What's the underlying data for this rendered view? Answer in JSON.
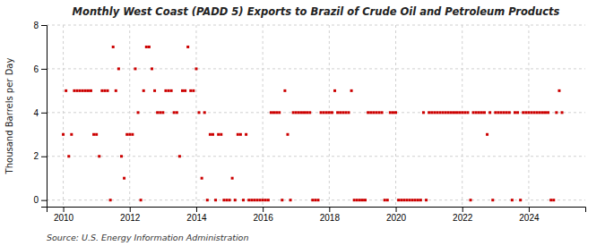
{
  "chart_data": {
    "type": "scatter",
    "title": "Monthly West Coast (PADD 5) Exports to Brazil of Crude Oil and Petroleum Products",
    "ylabel": "Thousand Barrels per Day",
    "source": "Source: U.S. Energy Information Administration",
    "color": "#cc0000",
    "marker": "square",
    "grid": true,
    "xlim": [
      2009.5,
      2025.7
    ],
    "xticks": [
      2010,
      2012,
      2014,
      2016,
      2018,
      2020,
      2022,
      2024
    ],
    "ylim": [
      -0.3,
      8
    ],
    "yticks": [
      0,
      2,
      4,
      6,
      8
    ],
    "x": [
      2010.0,
      2010.083,
      2010.167,
      2010.25,
      2010.333,
      2010.417,
      2010.5,
      2010.583,
      2010.667,
      2010.75,
      2010.833,
      2010.917,
      2011.0,
      2011.083,
      2011.167,
      2011.25,
      2011.333,
      2011.417,
      2011.5,
      2011.583,
      2011.667,
      2011.75,
      2011.833,
      2011.917,
      2012.0,
      2012.083,
      2012.167,
      2012.25,
      2012.333,
      2012.417,
      2012.5,
      2012.583,
      2012.667,
      2012.75,
      2012.833,
      2012.917,
      2013.0,
      2013.083,
      2013.167,
      2013.25,
      2013.333,
      2013.417,
      2013.5,
      2013.583,
      2013.667,
      2013.75,
      2013.833,
      2013.917,
      2014.0,
      2014.083,
      2014.167,
      2014.25,
      2014.333,
      2014.417,
      2014.5,
      2014.583,
      2014.667,
      2014.75,
      2014.833,
      2014.917,
      2015.0,
      2015.083,
      2015.167,
      2015.25,
      2015.333,
      2015.417,
      2015.5,
      2015.583,
      2015.667,
      2015.75,
      2015.833,
      2015.917,
      2016.0,
      2016.083,
      2016.167,
      2016.25,
      2016.333,
      2016.417,
      2016.5,
      2016.583,
      2016.667,
      2016.75,
      2016.833,
      2016.917,
      2017.0,
      2017.083,
      2017.167,
      2017.25,
      2017.333,
      2017.417,
      2017.5,
      2017.583,
      2017.667,
      2017.75,
      2017.833,
      2017.917,
      2018.0,
      2018.083,
      2018.167,
      2018.25,
      2018.333,
      2018.417,
      2018.5,
      2018.583,
      2018.667,
      2018.75,
      2018.833,
      2018.917,
      2019.0,
      2019.083,
      2019.167,
      2019.25,
      2019.333,
      2019.417,
      2019.5,
      2019.583,
      2019.667,
      2019.75,
      2019.833,
      2019.917,
      2020.0,
      2020.083,
      2020.167,
      2020.25,
      2020.333,
      2020.417,
      2020.5,
      2020.583,
      2020.667,
      2020.75,
      2020.833,
      2020.917,
      2021.0,
      2021.083,
      2021.167,
      2021.25,
      2021.333,
      2021.417,
      2021.5,
      2021.583,
      2021.667,
      2021.75,
      2021.833,
      2021.917,
      2022.0,
      2022.083,
      2022.167,
      2022.25,
      2022.333,
      2022.417,
      2022.5,
      2022.583,
      2022.667,
      2022.75,
      2022.833,
      2022.917,
      2023.0,
      2023.083,
      2023.167,
      2023.25,
      2023.333,
      2023.417,
      2023.5,
      2023.583,
      2023.667,
      2023.75,
      2023.833,
      2023.917,
      2024.0,
      2024.083,
      2024.167,
      2024.25,
      2024.333,
      2024.417,
      2024.5,
      2024.583,
      2024.667,
      2024.75,
      2024.833,
      2024.917,
      2025.0
    ],
    "values": [
      3,
      5,
      2,
      3,
      5,
      5,
      5,
      5,
      5,
      5,
      5,
      3,
      3,
      2,
      5,
      5,
      5,
      0,
      7,
      5,
      6,
      2,
      1,
      3,
      3,
      3,
      6,
      4,
      0,
      5,
      7,
      7,
      6,
      5,
      4,
      4,
      4,
      5,
      5,
      5,
      4,
      4,
      2,
      5,
      5,
      7,
      5,
      5,
      6,
      4,
      1,
      4,
      0,
      3,
      3,
      0,
      3,
      3,
      0,
      0,
      0,
      1,
      0,
      3,
      3,
      0,
      3,
      0,
      0,
      0,
      0,
      0,
      0,
      0,
      0,
      4,
      4,
      4,
      4,
      0,
      5,
      3,
      0,
      4,
      4,
      4,
      4,
      4,
      4,
      4,
      0,
      0,
      0,
      4,
      4,
      4,
      4,
      4,
      5,
      4,
      4,
      4,
      4,
      4,
      5,
      0,
      0,
      0,
      0,
      0,
      4,
      4,
      4,
      4,
      4,
      4,
      0,
      0,
      4,
      4,
      4,
      0,
      0,
      0,
      0,
      0,
      0,
      0,
      0,
      0,
      4,
      0,
      4,
      4,
      4,
      4,
      4,
      4,
      4,
      4,
      4,
      4,
      4,
      4,
      4,
      4,
      4,
      0,
      4,
      4,
      4,
      4,
      4,
      3,
      4,
      0,
      4,
      4,
      4,
      4,
      4,
      4,
      0,
      4,
      4,
      0,
      4,
      4,
      4,
      4,
      4,
      4,
      4,
      4,
      4,
      4,
      0,
      0,
      4,
      5,
      4
    ]
  }
}
